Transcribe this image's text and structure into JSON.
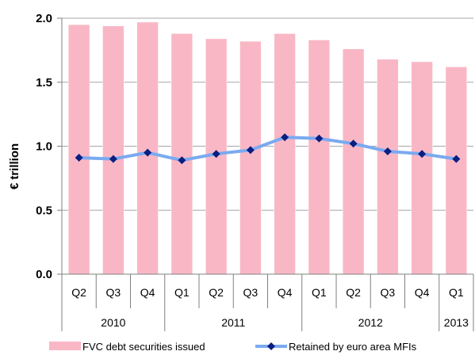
{
  "chart_data": {
    "type": "bar",
    "ylabel": "€ trillion",
    "ylim": [
      0.0,
      2.0
    ],
    "yticks": [
      "0.0",
      "0.5",
      "1.0",
      "1.5",
      "2.0"
    ],
    "grid": true,
    "legend_position": "bottom",
    "categories": [
      "Q2",
      "Q3",
      "Q4",
      "Q1",
      "Q2",
      "Q3",
      "Q4",
      "Q1",
      "Q2",
      "Q3",
      "Q4",
      "Q1"
    ],
    "groups": [
      {
        "label": "2010",
        "count": 3
      },
      {
        "label": "2011",
        "count": 4
      },
      {
        "label": "2012",
        "count": 4
      },
      {
        "label": "2013",
        "count": 1
      }
    ],
    "series": [
      {
        "name": "FVC debt securities issued",
        "type": "bar",
        "color": "#f9b7c5",
        "values": [
          1.95,
          1.94,
          1.97,
          1.88,
          1.84,
          1.82,
          1.88,
          1.83,
          1.76,
          1.68,
          1.66,
          1.62
        ]
      },
      {
        "name": "Retained by euro area MFIs",
        "type": "line",
        "color": "#7aaaf0",
        "marker_color": "#0b1e82",
        "values": [
          0.91,
          0.9,
          0.95,
          0.89,
          0.94,
          0.97,
          1.07,
          1.06,
          1.02,
          0.96,
          0.94,
          0.9
        ]
      }
    ]
  }
}
